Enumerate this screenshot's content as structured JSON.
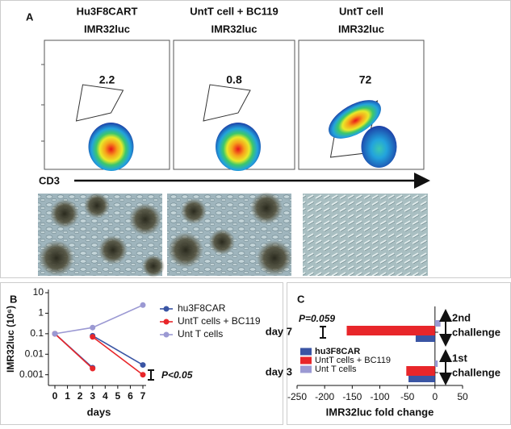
{
  "panel_a": {
    "label": "A",
    "columns": [
      {
        "title": [
          "Hu3F8CART",
          "IMR32luc"
        ],
        "percent": 2.2
      },
      {
        "title": [
          "UntT cell + BC119",
          "IMR32luc"
        ],
        "percent": 0.8
      },
      {
        "title": [
          "UntT cell",
          "IMR32luc"
        ],
        "percent": 72
      }
    ],
    "axis_label": "CD3"
  },
  "chart_data": [
    {
      "type": "line",
      "label": "B",
      "y_label": "IMR32luc (10⁶)",
      "x_label": "days",
      "log_y": true,
      "ylim": [
        0.0003,
        10
      ],
      "yticks": [
        0.001,
        0.01,
        0.1,
        1,
        10
      ],
      "xlim": [
        0,
        7
      ],
      "xticks": [
        0,
        1,
        2,
        3,
        4,
        5,
        6,
        7
      ],
      "series": [
        {
          "name": "hu3F8CAR",
          "color": "#3a55a4",
          "x": [
            0,
            3,
            3,
            3,
            7
          ],
          "values": [
            0.1,
            0.0022,
            null,
            0.08,
            0.003
          ]
        },
        {
          "name": "UntT cells + BC119",
          "color": "#e8262a",
          "x": [
            0,
            3,
            3,
            3,
            7
          ],
          "values": [
            0.1,
            0.002,
            null,
            0.07,
            0.001
          ]
        },
        {
          "name": "Unt T cells",
          "color": "#9b99d3",
          "x": [
            0,
            3,
            7
          ],
          "values": [
            0.1,
            0.2,
            2.5
          ]
        }
      ],
      "annotation": "P<0.05"
    },
    {
      "type": "hbar",
      "label": "C",
      "x_label": "IMR32luc fold change",
      "categories": [
        "day 7",
        "day 3"
      ],
      "xlim": [
        -250,
        50
      ],
      "xticks": [
        -250,
        -200,
        -150,
        -100,
        -50,
        0,
        50
      ],
      "series": [
        {
          "name": "hu3F8CAR",
          "color": "#3a55a4",
          "values": [
            -35,
            -48
          ]
        },
        {
          "name": "UntT cells + BC119",
          "color": "#e8262a",
          "values": [
            -160,
            -52
          ]
        },
        {
          "name": "Unt T cells",
          "color": "#9b99d3",
          "values": [
            10,
            5
          ]
        }
      ],
      "annotation": "P=0.059",
      "challenges": [
        [
          "2nd",
          "challenge"
        ],
        [
          "1st",
          "challenge"
        ]
      ]
    }
  ]
}
